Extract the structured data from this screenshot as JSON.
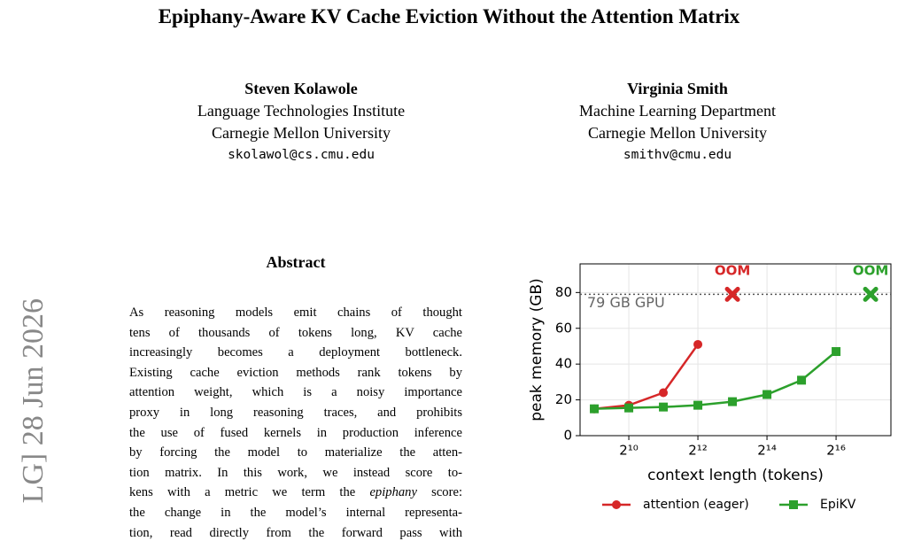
{
  "title": "Epiphany-Aware KV Cache Eviction Without the Attention Matrix",
  "authors": [
    {
      "name": "Steven Kolawole",
      "affiliation": "Language Technologies Institute",
      "institution": "Carnegie Mellon University",
      "email": "skolawol@cs.cmu.edu"
    },
    {
      "name": "Virginia Smith",
      "affiliation": "Machine Learning Department",
      "institution": "Carnegie Mellon University",
      "email": "smithv@cmu.edu"
    }
  ],
  "arxiv_stamp": "LG]  28 Jun 2026",
  "abstract": {
    "heading": "Abstract",
    "lines": [
      "As reasoning models emit chains of thought",
      "tens of thousands of tokens long, KV cache",
      "increasingly becomes a deployment bottleneck.",
      "Existing cache eviction methods rank tokens by",
      "attention weight, which is a noisy importance",
      "proxy in long reasoning traces, and prohibits",
      "the use of fused kernels in production inference",
      "by forcing the model to materialize the atten-",
      "tion matrix. In this work, we instead score to-",
      [
        "kens with a metric we term the ",
        "epiphany",
        " score:"
      ],
      "the change in the model’s internal representa-",
      "tion, read directly from the forward pass with"
    ]
  },
  "chart_data": {
    "type": "line",
    "x_label": "context length (tokens)",
    "y_label": "peak memory (GB)",
    "xscale": "log2",
    "xlim": [
      385,
      197000
    ],
    "ylim": [
      0,
      96
    ],
    "xticks": [
      {
        "value": 1024,
        "label": "2¹⁰"
      },
      {
        "value": 4096,
        "label": "2¹²"
      },
      {
        "value": 16384,
        "label": "2¹⁴"
      },
      {
        "value": 65536,
        "label": "2¹⁶"
      }
    ],
    "yticks": [
      0,
      20,
      40,
      60,
      80
    ],
    "grid": true,
    "legend": "bottom",
    "series": [
      {
        "name": "attention (eager)",
        "color": "#d62728",
        "marker": "circle",
        "x": [
          512,
          1024,
          2048,
          4096
        ],
        "values": [
          15,
          17,
          24,
          51
        ]
      },
      {
        "name": "EpiKV",
        "color": "#2ca02c",
        "marker": "square",
        "x": [
          512,
          1024,
          2048,
          4096,
          8192,
          16384,
          32768,
          65536
        ],
        "values": [
          15,
          15.5,
          16,
          17,
          19,
          23,
          31,
          47
        ]
      }
    ],
    "oom": [
      {
        "x": 8192,
        "y": 79,
        "label": "OOM",
        "color": "#d62728"
      },
      {
        "x": 131072,
        "y": 79,
        "label": "OOM",
        "color": "#2ca02c"
      }
    ],
    "hline": {
      "value": 79,
      "label": "79 GB GPU"
    }
  }
}
